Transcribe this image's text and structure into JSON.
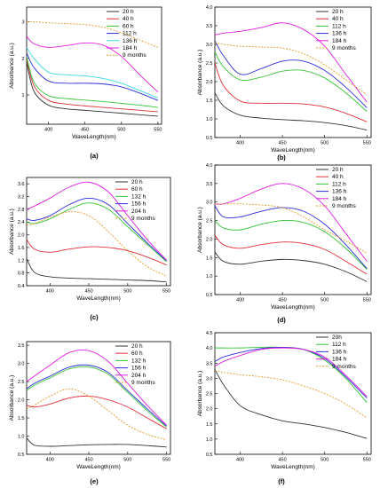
{
  "figure": {
    "panels": [
      "(a)",
      "(b)",
      "(c)",
      "(d)",
      "(e)",
      "(f)"
    ]
  },
  "chart_data": [
    {
      "type": "line",
      "panel_label": "(a)",
      "xlabel": "WaveLength(nm)",
      "ylabel": "Absorbance (a.u.)",
      "xlim": [
        370,
        555
      ],
      "ylim": [
        0.2,
        3.4
      ],
      "xticks": [
        400,
        450,
        500,
        550
      ],
      "yticks": [
        1,
        2,
        3
      ],
      "legend_position": "top-right",
      "x": [
        370,
        380,
        400,
        425,
        450,
        475,
        500,
        525,
        550
      ],
      "series": [
        {
          "name": "20 h",
          "color": "#333333",
          "dashed": false,
          "values": [
            1.9,
            1.1,
            0.72,
            0.62,
            0.58,
            0.54,
            0.5,
            0.46,
            0.42
          ]
        },
        {
          "name": "40 h",
          "color": "#e0303a",
          "dashed": false,
          "values": [
            2.0,
            1.25,
            0.85,
            0.75,
            0.7,
            0.66,
            0.62,
            0.58,
            0.54
          ]
        },
        {
          "name": "60 h",
          "color": "#35c435",
          "dashed": false,
          "values": [
            2.05,
            1.35,
            0.98,
            0.9,
            0.86,
            0.82,
            0.77,
            0.72,
            0.66
          ]
        },
        {
          "name": "112 h",
          "color": "#2c2cd8",
          "dashed": false,
          "values": [
            2.15,
            1.75,
            1.38,
            1.32,
            1.32,
            1.3,
            1.22,
            1.05,
            0.85
          ]
        },
        {
          "name": "136 h",
          "color": "#38d9e0",
          "dashed": false,
          "values": [
            2.3,
            2.0,
            1.62,
            1.55,
            1.52,
            1.45,
            1.32,
            1.12,
            0.92
          ]
        },
        {
          "name": "184 h",
          "color": "#e01ee0",
          "dashed": false,
          "values": [
            2.6,
            2.4,
            2.3,
            2.35,
            2.42,
            2.36,
            2.05,
            1.55,
            1.08
          ]
        },
        {
          "name": "9 months",
          "color": "#e39b2a",
          "dashed": true,
          "values": [
            3.0,
            3.0,
            2.97,
            2.95,
            2.92,
            2.85,
            2.7,
            2.5,
            2.3
          ]
        }
      ]
    },
    {
      "type": "line",
      "panel_label": "(b)",
      "xlabel": "WaveLength(nm)",
      "ylabel": "Absorbance (a.u.)",
      "xlim": [
        370,
        555
      ],
      "ylim": [
        0.5,
        4.0
      ],
      "xticks": [
        400,
        450,
        500,
        550
      ],
      "yticks": [
        0.5,
        1.0,
        1.5,
        2.0,
        2.5,
        3.0,
        3.5,
        4.0
      ],
      "legend_position": "top-right",
      "x": [
        370,
        380,
        400,
        425,
        450,
        475,
        500,
        525,
        550
      ],
      "series": [
        {
          "name": "20 h",
          "color": "#333333",
          "dashed": false,
          "values": [
            1.7,
            1.35,
            1.1,
            1.02,
            0.98,
            0.95,
            0.9,
            0.82,
            0.7
          ]
        },
        {
          "name": "40 h",
          "color": "#e0303a",
          "dashed": false,
          "values": [
            2.5,
            1.9,
            1.48,
            1.42,
            1.42,
            1.4,
            1.32,
            1.15,
            0.92
          ]
        },
        {
          "name": "112 h",
          "color": "#35c435",
          "dashed": false,
          "values": [
            2.8,
            2.4,
            2.05,
            2.12,
            2.28,
            2.3,
            2.1,
            1.7,
            1.2
          ]
        },
        {
          "name": "136 h",
          "color": "#2c2cd8",
          "dashed": false,
          "values": [
            3.1,
            2.7,
            2.2,
            2.35,
            2.55,
            2.55,
            2.3,
            1.85,
            1.3
          ]
        },
        {
          "name": "184 h",
          "color": "#e01ee0",
          "dashed": false,
          "values": [
            3.25,
            3.3,
            3.35,
            3.45,
            3.58,
            3.4,
            2.95,
            2.2,
            1.45
          ]
        },
        {
          "name": "9 months",
          "color": "#e39b2a",
          "dashed": true,
          "values": [
            3.05,
            3.0,
            2.95,
            2.93,
            2.9,
            2.75,
            2.45,
            2.05,
            1.65
          ]
        }
      ]
    },
    {
      "type": "line",
      "panel_label": "(c)",
      "xlabel": "WaveLength(nm)",
      "ylabel": "Absorbance (a.u.)",
      "xlim": [
        370,
        555
      ],
      "ylim": [
        0.4,
        3.8
      ],
      "xticks": [
        400,
        450,
        500,
        550
      ],
      "yticks": [
        0.4,
        0.8,
        1.2,
        1.6,
        2.0,
        2.4,
        2.8,
        3.2,
        3.6
      ],
      "legend_position": "top-right",
      "x": [
        370,
        380,
        400,
        425,
        450,
        475,
        500,
        525,
        550
      ],
      "series": [
        {
          "name": "20 h",
          "color": "#333333",
          "dashed": false,
          "values": [
            1.25,
            0.82,
            0.68,
            0.64,
            0.62,
            0.6,
            0.58,
            0.56,
            0.52
          ]
        },
        {
          "name": "60 h",
          "color": "#e0303a",
          "dashed": false,
          "values": [
            1.85,
            1.55,
            1.45,
            1.55,
            1.62,
            1.6,
            1.5,
            1.3,
            1.05
          ]
        },
        {
          "name": "132 h",
          "color": "#35c435",
          "dashed": false,
          "values": [
            2.4,
            2.35,
            2.5,
            2.8,
            3.0,
            2.8,
            2.25,
            1.7,
            1.15
          ]
        },
        {
          "name": "156 h",
          "color": "#2c2cd8",
          "dashed": false,
          "values": [
            2.5,
            2.45,
            2.6,
            2.95,
            3.15,
            2.95,
            2.35,
            1.75,
            1.18
          ]
        },
        {
          "name": "204 h",
          "color": "#e01ee0",
          "dashed": false,
          "values": [
            2.8,
            2.9,
            3.15,
            3.5,
            3.65,
            3.35,
            2.6,
            1.85,
            1.2
          ]
        },
        {
          "name": "9 months",
          "color": "#e39b2a",
          "dashed": true,
          "values": [
            2.3,
            2.35,
            2.55,
            2.72,
            2.6,
            2.1,
            1.5,
            1.0,
            0.7
          ]
        }
      ]
    },
    {
      "type": "line",
      "panel_label": "(d)",
      "xlabel": "WaveLength(nm)",
      "ylabel": "Absorbance (a.u.)",
      "xlim": [
        370,
        555
      ],
      "ylim": [
        0.5,
        4.0
      ],
      "xticks": [
        400,
        450,
        500,
        550
      ],
      "yticks": [
        0.5,
        1.0,
        1.5,
        2.0,
        2.5,
        3.0,
        3.5,
        4.0
      ],
      "legend_position": "top-right",
      "x": [
        370,
        380,
        400,
        425,
        450,
        475,
        500,
        525,
        550
      ],
      "series": [
        {
          "name": "20 h",
          "color": "#333333",
          "dashed": false,
          "values": [
            1.65,
            1.4,
            1.32,
            1.4,
            1.45,
            1.42,
            1.32,
            1.12,
            0.85
          ]
        },
        {
          "name": "40 h",
          "color": "#e0303a",
          "dashed": false,
          "values": [
            2.1,
            1.85,
            1.75,
            1.85,
            1.92,
            1.88,
            1.72,
            1.4,
            1.05
          ]
        },
        {
          "name": "112 h",
          "color": "#35c435",
          "dashed": false,
          "values": [
            2.5,
            2.3,
            2.25,
            2.4,
            2.5,
            2.45,
            2.2,
            1.75,
            1.18
          ]
        },
        {
          "name": "136 h",
          "color": "#2c2cd8",
          "dashed": false,
          "values": [
            2.9,
            2.6,
            2.6,
            2.75,
            2.85,
            2.75,
            2.4,
            1.85,
            1.2
          ]
        },
        {
          "name": "184 h",
          "color": "#e01ee0",
          "dashed": false,
          "values": [
            2.95,
            2.95,
            3.1,
            3.35,
            3.5,
            3.35,
            2.9,
            2.15,
            1.4
          ]
        },
        {
          "name": "9 months",
          "color": "#e39b2a",
          "dashed": true,
          "values": [
            2.95,
            2.95,
            2.95,
            2.92,
            2.85,
            2.6,
            2.25,
            1.95,
            1.62
          ]
        }
      ]
    },
    {
      "type": "line",
      "panel_label": "(e)",
      "xlabel": "WaveLength(nm)",
      "ylabel": "Absorbance (a.u.)",
      "xlim": [
        370,
        555
      ],
      "ylim": [
        0.5,
        3.6
      ],
      "xticks": [
        400,
        450,
        500,
        550
      ],
      "yticks": [
        0.5,
        1.0,
        1.5,
        2.0,
        2.5,
        3.0,
        3.5
      ],
      "legend_position": "top-right",
      "x": [
        370,
        380,
        400,
        425,
        450,
        475,
        500,
        525,
        550
      ],
      "series": [
        {
          "name": "20 h",
          "color": "#333333",
          "dashed": false,
          "values": [
            0.95,
            0.75,
            0.72,
            0.74,
            0.76,
            0.77,
            0.77,
            0.74,
            0.7
          ]
        },
        {
          "name": "60 h",
          "color": "#e0303a",
          "dashed": false,
          "values": [
            1.85,
            1.8,
            1.88,
            2.05,
            2.1,
            2.0,
            1.8,
            1.5,
            1.2
          ]
        },
        {
          "name": "132 h",
          "color": "#35c435",
          "dashed": false,
          "values": [
            2.25,
            2.4,
            2.6,
            2.85,
            2.9,
            2.7,
            2.2,
            1.7,
            1.25
          ]
        },
        {
          "name": "156 h",
          "color": "#2c2cd8",
          "dashed": false,
          "values": [
            2.3,
            2.45,
            2.65,
            2.9,
            2.95,
            2.75,
            2.25,
            1.75,
            1.28
          ]
        },
        {
          "name": "204 h",
          "color": "#e01ee0",
          "dashed": false,
          "values": [
            2.5,
            2.65,
            2.95,
            3.3,
            3.35,
            3.05,
            2.45,
            1.85,
            1.3
          ]
        },
        {
          "name": "9 months",
          "color": "#e39b2a",
          "dashed": true,
          "values": [
            1.75,
            1.85,
            2.1,
            2.3,
            2.1,
            1.7,
            1.3,
            1.05,
            0.9
          ]
        }
      ]
    },
    {
      "type": "line",
      "panel_label": "(f)",
      "xlabel": "WaveLength(nm)",
      "ylabel": "Absorbance (a.u.)",
      "xlim": [
        370,
        555
      ],
      "ylim": [
        0.5,
        4.5
      ],
      "xticks": [
        400,
        450,
        500,
        550
      ],
      "yticks": [
        0.5,
        1.0,
        1.5,
        2.0,
        2.5,
        3.0,
        3.5,
        4.0,
        4.5
      ],
      "legend_position": "top-right",
      "x": [
        370,
        380,
        400,
        425,
        450,
        475,
        500,
        525,
        550
      ],
      "series": [
        {
          "name": "20h",
          "color": "#333333",
          "dashed": false,
          "values": [
            3.3,
            2.8,
            2.1,
            1.8,
            1.6,
            1.5,
            1.38,
            1.22,
            1.02
          ]
        },
        {
          "name": "112 h",
          "color": "#35c435",
          "dashed": false,
          "values": [
            4.0,
            4.0,
            4.0,
            4.02,
            4.02,
            3.95,
            3.6,
            3.0,
            2.2
          ]
        },
        {
          "name": "136 h",
          "color": "#2c2cd8",
          "dashed": false,
          "values": [
            3.55,
            3.7,
            3.85,
            3.98,
            4.02,
            3.95,
            3.65,
            3.05,
            2.35
          ]
        },
        {
          "name": "184 h",
          "color": "#e01ee0",
          "dashed": false,
          "values": [
            3.4,
            3.55,
            3.75,
            3.95,
            4.0,
            3.95,
            3.7,
            3.1,
            2.4
          ]
        },
        {
          "name": "9 months",
          "color": "#e39b2a",
          "dashed": true,
          "values": [
            3.25,
            3.2,
            3.12,
            3.05,
            2.95,
            2.75,
            2.5,
            2.15,
            1.7
          ]
        }
      ]
    }
  ]
}
